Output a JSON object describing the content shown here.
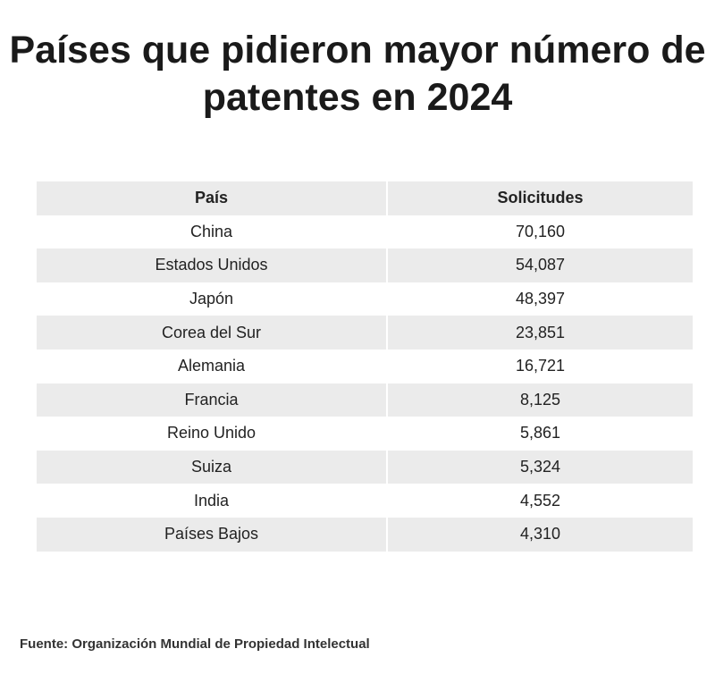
{
  "title": "Países que pidieron mayor número de patentes en 2024",
  "source": "Fuente: Organización Mundial de Propiedad Intelectual",
  "chart_data": {
    "type": "table",
    "title": "Países que pidieron mayor número de patentes en 2024",
    "columns": [
      "País",
      "Solicitudes"
    ],
    "rows": [
      {
        "country": "China",
        "value": "70,160"
      },
      {
        "country": "Estados Unidos",
        "value": "54,087"
      },
      {
        "country": "Japón",
        "value": "48,397"
      },
      {
        "country": "Corea del Sur",
        "value": "23,851"
      },
      {
        "country": "Alemania",
        "value": "16,721"
      },
      {
        "country": "Francia",
        "value": "8,125"
      },
      {
        "country": "Reino Unido",
        "value": "5,861"
      },
      {
        "country": "Suiza",
        "value": "5,324"
      },
      {
        "country": "India",
        "value": "4,552"
      },
      {
        "country": "Países Bajos",
        "value": "4,310"
      }
    ]
  },
  "colors": {
    "row_shade": "#ebebeb",
    "text": "#222222",
    "background": "#ffffff"
  }
}
